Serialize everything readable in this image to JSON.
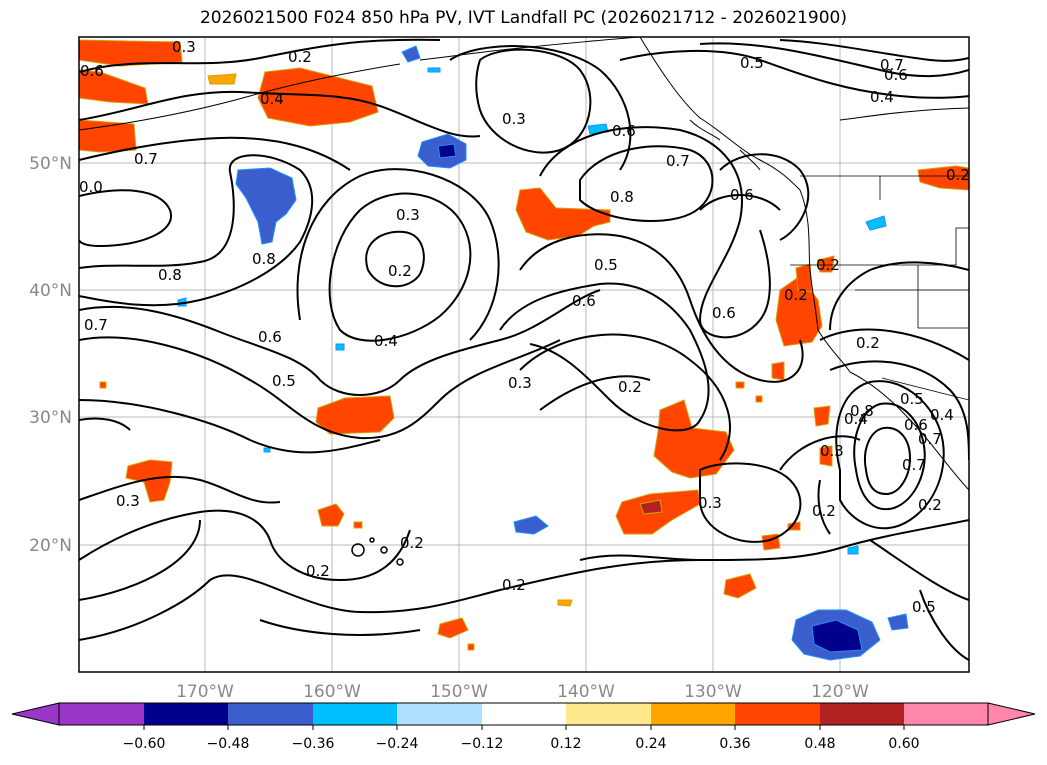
{
  "title": "2026021500 F024 850 hPa PV, IVT Landfall PC (2026021712 - 2026021900)",
  "axes": {
    "lat_labels": [
      "50°N",
      "40°N",
      "30°N",
      "20°N"
    ],
    "lon_labels": [
      "170°W",
      "160°W",
      "150°W",
      "140°W",
      "130°W",
      "120°W"
    ]
  },
  "contour_labels": [
    "0.3",
    "0.2",
    "0.6",
    "0.4",
    "0.7",
    "0.0",
    "0.8",
    "0.7",
    "0.8",
    "0.6",
    "0.5",
    "0.3",
    "0.3",
    "0.2",
    "0.4",
    "0.5",
    "0.6",
    "0.7",
    "0.8",
    "0.6",
    "0.7",
    "0.6",
    "0.4",
    "0.6",
    "0.3",
    "0.2",
    "0.3",
    "0.2",
    "0.2",
    "0.2",
    "0.2",
    "0.2",
    "0.2",
    "0.2",
    "0.6",
    "0.5",
    "0.4",
    "0.5",
    "0.7",
    "0.2",
    "0.3",
    "0.3",
    "0.5",
    "0.8",
    "0.7",
    "0.6",
    "0.4",
    "0.2"
  ],
  "colorbar": {
    "colors": [
      "#9a37c8",
      "#00008b",
      "#3a5fcd",
      "#00bfff",
      "#b0e0ff",
      "#ffffff",
      "#ffe88c",
      "#ffa500",
      "#ff4500",
      "#b22222",
      "#ff88aa"
    ],
    "tick_labels": [
      "−0.60",
      "−0.48",
      "−0.36",
      "−0.24",
      "−0.12",
      "0.12",
      "0.24",
      "0.36",
      "0.48",
      "0.60"
    ]
  }
}
